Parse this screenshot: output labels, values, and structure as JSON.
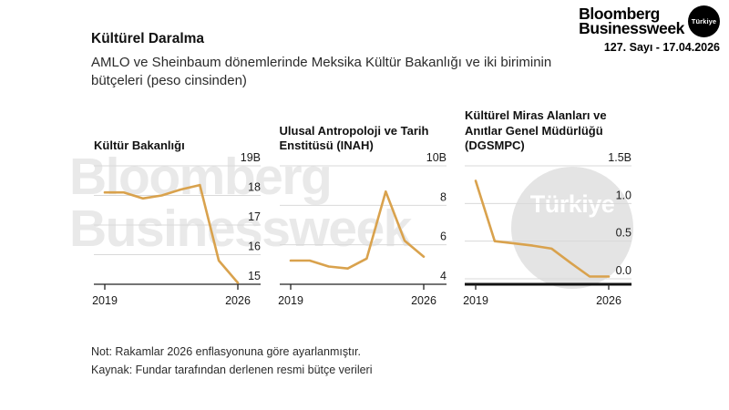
{
  "header": {
    "title": "Kültürel Daralma",
    "subtitle": "AMLO ve Sheinbaum dönemlerinde Meksika Kültür Bakanlığı ve iki biriminin\nbütçeleri (peso cinsinden)"
  },
  "masthead": {
    "brand_line1": "Bloomberg",
    "brand_line2": "Businessweek",
    "badge": "Türkiye",
    "issue": "127. Sayı - 17.04.2026"
  },
  "watermark": {
    "line1": "Bloomberg",
    "line2": "Businessweek",
    "circle_label": "Türkiye"
  },
  "notes": {
    "note": "Not: Rakamlar 2026 enflasyonuna göre ayarlanmıştır.",
    "source": "Kaynak: Fundar tarafından derlenen resmi bütçe verileri"
  },
  "colors": {
    "line": "#d9a24d",
    "grid": "#d9d9d9",
    "axis": "#222222",
    "axis_bold": "#111111",
    "text": "#1a1a1a",
    "watermark_text": "#e9e9e9",
    "watermark_circle": "#e4e4e4"
  },
  "chart_data": [
    {
      "type": "line",
      "title": "Kültür Bakanlığı",
      "x": [
        2019,
        2020,
        2021,
        2022,
        2023,
        2024,
        2025,
        2026
      ],
      "values": [
        18.1,
        18.1,
        17.9,
        18.0,
        18.2,
        18.35,
        15.8,
        15.05
      ],
      "ylim": [
        15,
        19
      ],
      "yticks": [
        {
          "v": 19,
          "label": "19B"
        },
        {
          "v": 18,
          "label": "18"
        },
        {
          "v": 17,
          "label": "17"
        },
        {
          "v": 16,
          "label": "16"
        },
        {
          "v": 15,
          "label": "15"
        }
      ],
      "xticks": [
        {
          "v": 2019,
          "label": "2019"
        },
        {
          "v": 2026,
          "label": "2026"
        }
      ],
      "zero_axis": false,
      "grid": true,
      "legend": "none"
    },
    {
      "type": "line",
      "title": "Ulusal Antropoloji ve Tarih\nEnstitüsü (INAH)",
      "x": [
        2019,
        2020,
        2021,
        2022,
        2023,
        2024,
        2025,
        2026
      ],
      "values": [
        5.2,
        5.2,
        4.9,
        4.8,
        5.3,
        8.7,
        6.2,
        5.4
      ],
      "ylim": [
        4,
        10
      ],
      "yticks": [
        {
          "v": 10,
          "label": "10B"
        },
        {
          "v": 8,
          "label": "8"
        },
        {
          "v": 6,
          "label": "6"
        },
        {
          "v": 4,
          "label": "4"
        }
      ],
      "xticks": [
        {
          "v": 2019,
          "label": "2019"
        },
        {
          "v": 2026,
          "label": "2026"
        }
      ],
      "zero_axis": false,
      "grid": true,
      "legend": "none"
    },
    {
      "type": "line",
      "title": "Kültürel Miras Alanları ve\nAnıtlar Genel Müdürlüğü\n(DGSMPC)",
      "x": [
        2019,
        2020,
        2021,
        2022,
        2023,
        2024,
        2025,
        2026
      ],
      "values": [
        1.3,
        0.5,
        0.47,
        0.44,
        0.4,
        0.21,
        0.03,
        0.03
      ],
      "ylim": [
        0,
        1.5
      ],
      "yticks": [
        {
          "v": 1.5,
          "label": "1.5B"
        },
        {
          "v": 1.0,
          "label": "1.0"
        },
        {
          "v": 0.5,
          "label": "0.5"
        },
        {
          "v": 0.0,
          "label": "0.0"
        }
      ],
      "xticks": [
        {
          "v": 2019,
          "label": "2019"
        },
        {
          "v": 2026,
          "label": "2026"
        }
      ],
      "zero_axis": true,
      "grid": true,
      "legend": "none"
    }
  ]
}
